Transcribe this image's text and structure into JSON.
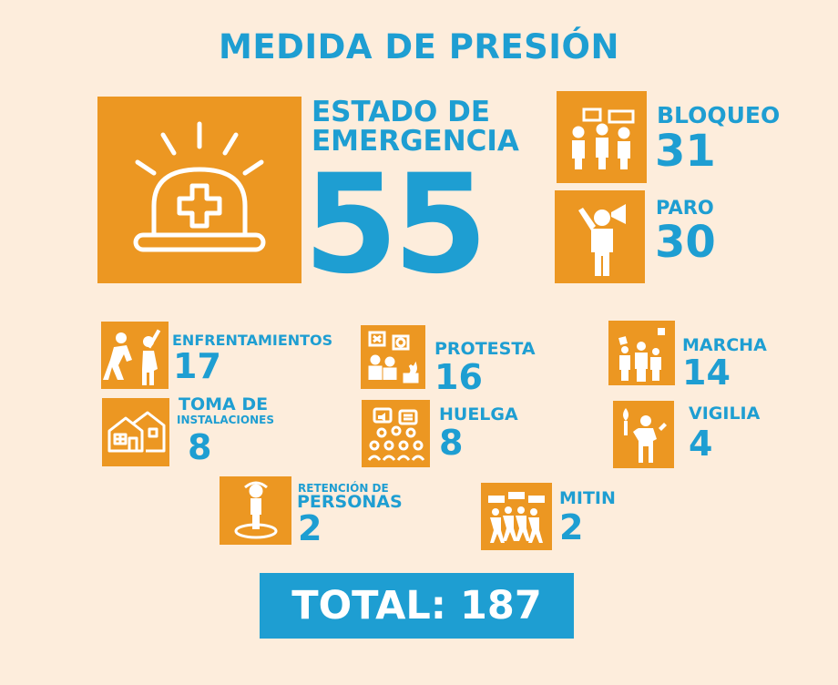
{
  "title": "MEDIDA DE PRESIÓN",
  "items": {
    "estado": {
      "label1": "ESTADO DE",
      "label2": "EMERGENCIA",
      "value": "55",
      "icon": "emergency-siren-icon"
    },
    "bloqueo": {
      "label": "BLOQUEO",
      "value": "31",
      "icon": "blockade-people-icon"
    },
    "paro": {
      "label": "PARO",
      "value": "30",
      "icon": "megaphone-person-icon"
    },
    "enfrentamientos": {
      "label": "ENFRENTAMIENTOS",
      "value": "17",
      "icon": "clash-icon"
    },
    "protesta": {
      "label": "PROTESTA",
      "value": "16",
      "icon": "protest-signs-icon"
    },
    "marcha": {
      "label": "MARCHA",
      "value": "14",
      "icon": "march-flags-icon"
    },
    "toma": {
      "label1": "TOMA DE",
      "label2": "INSTALACIONES",
      "value": "8",
      "icon": "buildings-icon"
    },
    "huelga": {
      "label": "HUELGA",
      "value": "8",
      "icon": "strike-crowd-icon"
    },
    "vigilia": {
      "label": "VIGILIA",
      "value": "4",
      "icon": "vigil-torch-icon"
    },
    "retencion": {
      "label1": "RETENCIÓN DE",
      "label2": "PERSONAS",
      "value": "2",
      "icon": "detained-person-icon"
    },
    "mitin": {
      "label": "MITIN",
      "value": "2",
      "icon": "rally-banners-icon"
    }
  },
  "total": "TOTAL: 187",
  "colors": {
    "background": "#fdeddc",
    "accent_orange": "#ec9722",
    "accent_blue": "#1e9ed2"
  }
}
